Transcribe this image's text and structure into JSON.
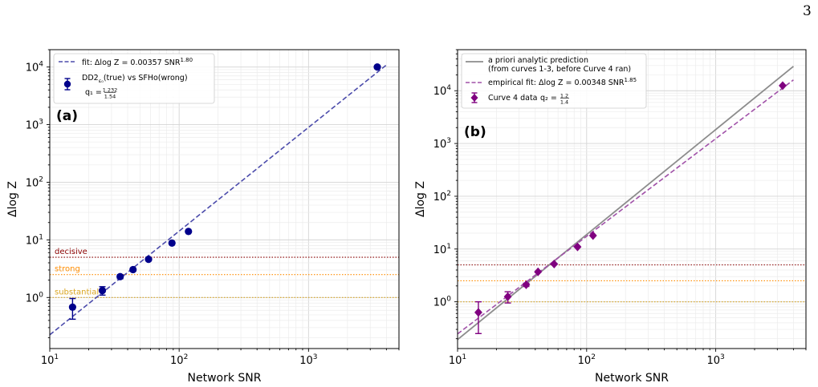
{
  "page_number": "3",
  "colors": {
    "navy": "#00008b",
    "fit_blue": "#4b4bab",
    "purple": "#800080",
    "purple_fit": "#a050a8",
    "gray_line": "#8c8c8c",
    "decisive": "#8b0000",
    "strong": "#ff8c00",
    "substantial": "#daa520"
  },
  "chart_data": [
    {
      "type": "scatter",
      "panel_label": "(a)",
      "xlabel": "Network SNR",
      "ylabel": "Δlog Z",
      "xscale": "log",
      "yscale": "log",
      "xlim": [
        10,
        5000
      ],
      "ylim": [
        0.13,
        20000
      ],
      "x_ticks": [
        10,
        100,
        1000
      ],
      "x_tick_labels": [
        {
          "base": "10",
          "exp": "1"
        },
        {
          "base": "10",
          "exp": "2"
        },
        {
          "base": "10",
          "exp": "3"
        }
      ],
      "y_ticks": [
        1,
        10,
        100,
        1000,
        10000
      ],
      "y_tick_labels": [
        {
          "base": "10",
          "exp": "0"
        },
        {
          "base": "10",
          "exp": "1"
        },
        {
          "base": "10",
          "exp": "2"
        },
        {
          "base": "10",
          "exp": "3"
        },
        {
          "base": "10",
          "exp": "4"
        }
      ],
      "grid": true,
      "legend_position": "top-left",
      "series": [
        {
          "name": "DD2(true) vs SFHo(wrong)",
          "legend_name": "DD2",
          "legend_sub": "ε₀",
          "legend_rest": "(true) vs SFHo(wrong)",
          "legend_q_prefix": "q₁ = ",
          "legend_q_num": "1.232",
          "legend_q_den": "1.54",
          "marker": "circle",
          "color": "#00008b",
          "points": [
            {
              "x": 15,
              "y": 0.68,
              "err_lo": 0.26,
              "err_hi": 0.28
            },
            {
              "x": 25.5,
              "y": 1.32,
              "err_lo": 0.22,
              "err_hi": 0.22
            },
            {
              "x": 35,
              "y": 2.3,
              "err_lo": 0.18,
              "err_hi": 0.18
            },
            {
              "x": 44,
              "y": 3.05,
              "err_lo": 0.15,
              "err_hi": 0.15
            },
            {
              "x": 58,
              "y": 4.6,
              "err_lo": 0.1,
              "err_hi": 0.1
            },
            {
              "x": 88,
              "y": 8.8,
              "err_lo": 0.1,
              "err_hi": 0.1
            },
            {
              "x": 118,
              "y": 14,
              "err_lo": 0.1,
              "err_hi": 0.1
            },
            {
              "x": 3400,
              "y": 10000,
              "err_lo": 0,
              "err_hi": 0
            }
          ]
        }
      ],
      "fits": [
        {
          "name": "fit: Δlog Z = 0.00357 SNR",
          "exponent_label": "1.80",
          "coef": 0.00357,
          "exponent": 1.8,
          "x_range": [
            10,
            4000
          ],
          "style": "dashed",
          "color": "#4b4bab"
        }
      ],
      "threshold_lines": [
        {
          "label": "decisive",
          "y": 5,
          "color": "#8b0000"
        },
        {
          "label": "strong",
          "y": 2.5,
          "color": "#ff8c00"
        },
        {
          "label": "substantial",
          "y": 1,
          "color": "#daa520"
        }
      ]
    },
    {
      "type": "scatter",
      "panel_label": "(b)",
      "xlabel": "Network SNR",
      "ylabel": "Δlog Z",
      "xscale": "log",
      "yscale": "log",
      "xlim": [
        10,
        5000
      ],
      "ylim": [
        0.13,
        60000
      ],
      "x_ticks": [
        10,
        100,
        1000
      ],
      "x_tick_labels": [
        {
          "base": "10",
          "exp": "1"
        },
        {
          "base": "10",
          "exp": "2"
        },
        {
          "base": "10",
          "exp": "3"
        }
      ],
      "y_ticks": [
        1,
        10,
        100,
        1000,
        10000
      ],
      "y_tick_labels": [
        {
          "base": "10",
          "exp": "0"
        },
        {
          "base": "10",
          "exp": "1"
        },
        {
          "base": "10",
          "exp": "2"
        },
        {
          "base": "10",
          "exp": "3"
        },
        {
          "base": "10",
          "exp": "4"
        }
      ],
      "grid": true,
      "legend_position": "top-left",
      "series": [
        {
          "name": "Curve 4 data",
          "legend_q_prefix": "q₂ = ",
          "legend_q_num": "1.2",
          "legend_q_den": "1.4",
          "marker": "diamond",
          "color": "#800080",
          "points": [
            {
              "x": 14.5,
              "y": 0.63,
              "err_lo": 0.38,
              "err_hi": 0.37
            },
            {
              "x": 24.5,
              "y": 1.25,
              "err_lo": 0.3,
              "err_hi": 0.3
            },
            {
              "x": 34,
              "y": 2.1,
              "err_lo": 0.15,
              "err_hi": 0.15
            },
            {
              "x": 42,
              "y": 3.7,
              "err_lo": 0.1,
              "err_hi": 0.1
            },
            {
              "x": 56,
              "y": 5.2,
              "err_lo": 0.1,
              "err_hi": 0.1
            },
            {
              "x": 85,
              "y": 11,
              "err_lo": 0.1,
              "err_hi": 0.1
            },
            {
              "x": 112,
              "y": 18,
              "err_lo": 0.1,
              "err_hi": 0.1
            },
            {
              "x": 3300,
              "y": 12500,
              "err_lo": 0,
              "err_hi": 0
            }
          ]
        }
      ],
      "fits": [
        {
          "name": "a priori analytic prediction",
          "name_line2": "(from curves 1-3, before Curve 4 ran)",
          "coef": 0.00197,
          "exponent": 1.99,
          "x_range": [
            10,
            4000
          ],
          "style": "solid",
          "color": "#8c8c8c"
        },
        {
          "name": "empirical fit: Δlog Z = 0.00348 SNR",
          "exponent_label": "1.85",
          "coef": 0.00348,
          "exponent": 1.85,
          "x_range": [
            10,
            4000
          ],
          "style": "dashed",
          "color": "#a050a8"
        }
      ],
      "threshold_lines": [
        {
          "label": "",
          "y": 5,
          "color": "#8b0000"
        },
        {
          "label": "",
          "y": 2.5,
          "color": "#ff8c00"
        },
        {
          "label": "",
          "y": 1,
          "color": "#daa520"
        }
      ]
    }
  ]
}
